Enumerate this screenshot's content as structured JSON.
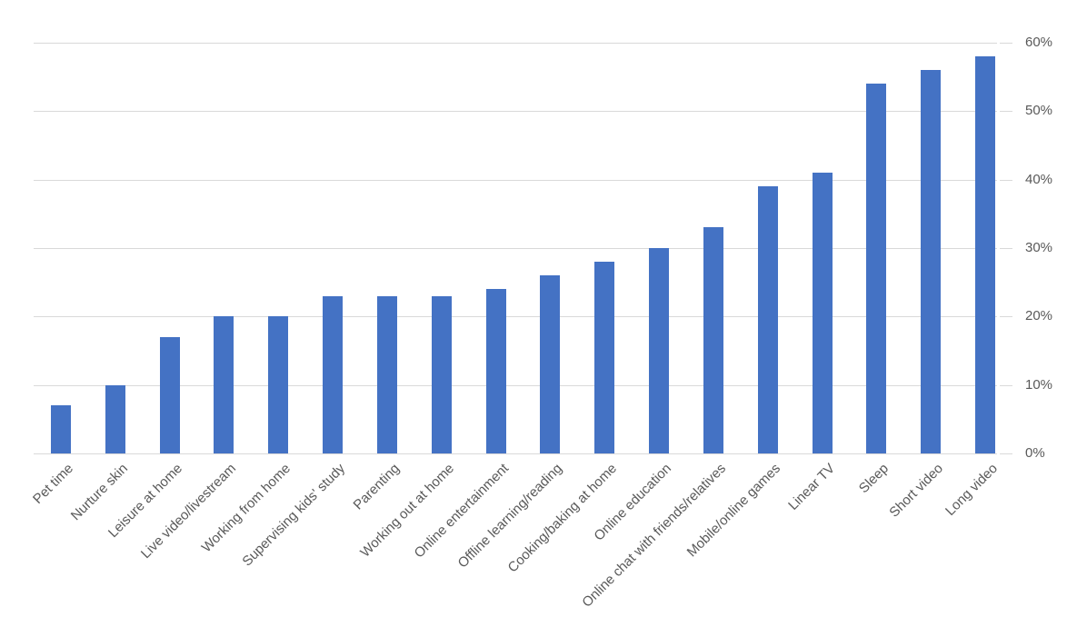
{
  "chart_data": {
    "type": "bar",
    "title": "",
    "categories": [
      "Pet time",
      "Nurture skin",
      "Leisure at home",
      "Live video/livestream",
      "Working from home",
      "Supervising kids' study",
      "Parenting",
      "Working out at home",
      "Online entertainment",
      "Offline learning/reading",
      "Cooking/baking at home",
      "Online education",
      "Online chat with friends/relatives",
      "Mobile/online games",
      "Linear TV",
      "Sleep",
      "Short video",
      "Long video"
    ],
    "values": [
      7,
      10,
      17,
      20,
      20,
      23,
      23,
      23,
      24,
      26,
      28,
      30,
      33,
      39,
      41,
      54,
      56,
      58
    ],
    "value_unit": "%",
    "xlabel": "",
    "ylabel": "",
    "ylim": [
      0,
      60
    ],
    "ytick_step": 10,
    "ytick_labels": [
      "0%",
      "10%",
      "20%",
      "30%",
      "40%",
      "50%",
      "60%"
    ],
    "yaxis_side": "right",
    "grid": "horizontal",
    "legend": "none",
    "colors": {
      "bar": "#4472C4",
      "gridline": "#D9D9D9",
      "axis_text": "#595959",
      "background": "#FFFFFF"
    }
  },
  "layout_note": "single bar chart, no title, no legend, category labels rotated 45 degrees"
}
